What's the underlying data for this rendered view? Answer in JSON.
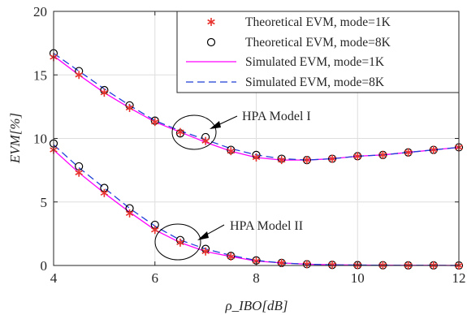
{
  "chart_data": {
    "type": "line",
    "xlabel": "ρ_IBO[dB]",
    "ylabel": "EVM[%]",
    "xlim": [
      4,
      12
    ],
    "ylim": [
      0,
      20
    ],
    "x_ticks": [
      "4",
      "6",
      "8",
      "10",
      "12"
    ],
    "y_ticks": [
      "0",
      "5",
      "10",
      "15",
      "20"
    ],
    "grid": true,
    "legend_position": "top-right",
    "legend": [
      "Theoretical EVM, mode=1K",
      "Theoretical EVM, mode=8K",
      "Simulated EVM, mode=1K",
      "Simulated EVM, mode=8K"
    ],
    "annotations": [
      "HPA Model I",
      "HPA Model II"
    ],
    "x": [
      4,
      4.5,
      5,
      5.5,
      6,
      6.5,
      7,
      7.5,
      8,
      8.5,
      9,
      9.5,
      10,
      10.5,
      11,
      11.5,
      12
    ],
    "groups": [
      {
        "annotation": "HPA Model I",
        "theoretical_1k": [
          16.4,
          15.0,
          13.6,
          12.4,
          11.3,
          10.5,
          9.8,
          9.0,
          8.5,
          8.3,
          8.3,
          8.4,
          8.6,
          8.7,
          8.9,
          9.1,
          9.3
        ],
        "theoretical_8k": [
          16.7,
          15.3,
          13.8,
          12.6,
          11.4,
          10.4,
          10.1,
          9.1,
          8.7,
          8.4,
          8.3,
          8.4,
          8.6,
          8.7,
          8.9,
          9.1,
          9.3
        ],
        "simulated_1k": [
          16.5,
          15.0,
          13.6,
          12.4,
          11.3,
          10.5,
          9.7,
          9.0,
          8.5,
          8.3,
          8.3,
          8.4,
          8.6,
          8.7,
          8.9,
          9.1,
          9.3
        ],
        "simulated_8k": [
          16.7,
          15.3,
          13.9,
          12.6,
          11.4,
          10.6,
          9.9,
          9.2,
          8.7,
          8.4,
          8.3,
          8.4,
          8.6,
          8.7,
          8.9,
          9.1,
          9.3
        ]
      },
      {
        "annotation": "HPA Model II",
        "theoretical_1k": [
          9.1,
          7.3,
          5.7,
          4.1,
          2.8,
          1.8,
          1.1,
          0.7,
          0.35,
          0.2,
          0.1,
          0.05,
          0.03,
          0.02,
          0.01,
          0.01,
          0.0
        ],
        "theoretical_8k": [
          9.6,
          7.8,
          6.1,
          4.5,
          3.2,
          2.0,
          1.3,
          0.75,
          0.4,
          0.2,
          0.1,
          0.05,
          0.03,
          0.02,
          0.01,
          0.01,
          0.0
        ],
        "simulated_1k": [
          9.1,
          7.3,
          5.7,
          4.2,
          2.8,
          1.8,
          1.1,
          0.7,
          0.35,
          0.2,
          0.1,
          0.05,
          0.03,
          0.02,
          0.01,
          0.01,
          0.0
        ],
        "simulated_8k": [
          9.5,
          7.7,
          6.1,
          4.5,
          3.1,
          2.0,
          1.3,
          0.8,
          0.4,
          0.2,
          0.1,
          0.05,
          0.03,
          0.02,
          0.01,
          0.01,
          0.0
        ]
      }
    ],
    "colors": {
      "theoretical_1k": "#e8332e",
      "theoretical_8k": "#000000",
      "simulated_1k": "#ff00ff",
      "simulated_8k": "#1f3fd6",
      "grid": "#dedede",
      "axis": "#262626"
    }
  }
}
